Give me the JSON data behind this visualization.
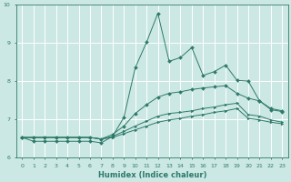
{
  "xlabel": "Humidex (Indice chaleur)",
  "background_color": "#cce8e4",
  "grid_color": "#b8d8d4",
  "line_color": "#2d7a6a",
  "xlim": [
    -0.5,
    23.5
  ],
  "ylim": [
    6,
    10
  ],
  "yticks": [
    6,
    7,
    8,
    9,
    10
  ],
  "xticks": [
    0,
    1,
    2,
    3,
    4,
    5,
    6,
    7,
    8,
    9,
    10,
    11,
    12,
    13,
    14,
    15,
    16,
    17,
    18,
    19,
    20,
    21,
    22,
    23
  ],
  "series": [
    [
      6.52,
      6.42,
      6.42,
      6.42,
      6.42,
      6.42,
      6.42,
      6.38,
      6.55,
      7.05,
      8.35,
      9.02,
      9.78,
      8.52,
      8.62,
      8.88,
      8.15,
      8.25,
      8.42,
      8.02,
      8.0,
      7.48,
      7.25,
      7.2
    ],
    [
      6.52,
      6.52,
      6.52,
      6.52,
      6.52,
      6.52,
      6.52,
      6.48,
      6.6,
      6.82,
      7.15,
      7.38,
      7.58,
      7.68,
      7.72,
      7.78,
      7.82,
      7.85,
      7.88,
      7.68,
      7.55,
      7.48,
      7.28,
      7.22
    ],
    [
      6.52,
      6.52,
      6.52,
      6.52,
      6.52,
      6.52,
      6.52,
      6.48,
      6.55,
      6.68,
      6.82,
      6.95,
      7.08,
      7.15,
      7.18,
      7.22,
      7.28,
      7.32,
      7.38,
      7.42,
      7.12,
      7.08,
      6.98,
      6.92
    ],
    [
      6.52,
      6.52,
      6.52,
      6.52,
      6.52,
      6.52,
      6.52,
      6.48,
      6.52,
      6.62,
      6.72,
      6.82,
      6.92,
      6.98,
      7.02,
      7.08,
      7.12,
      7.18,
      7.22,
      7.28,
      7.02,
      6.98,
      6.92,
      6.88
    ]
  ]
}
